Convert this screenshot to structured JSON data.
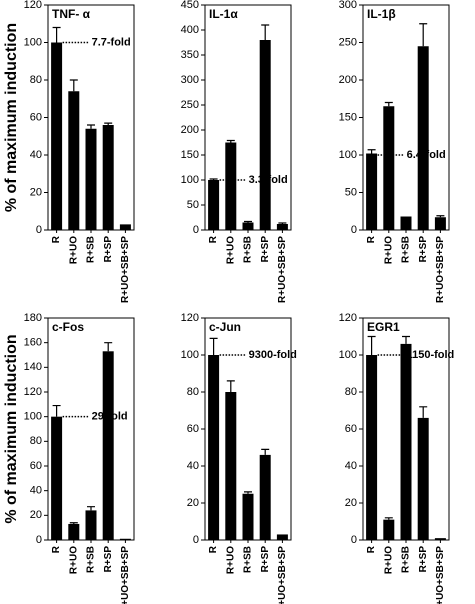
{
  "chart_data": [
    {
      "type": "bar",
      "title": "TNF- α",
      "ylabel": "% of maximum induction",
      "categories": [
        "R",
        "R+UO",
        "R+SB",
        "R+SP",
        "R+UO+SB+SP"
      ],
      "values": [
        100,
        74,
        54,
        56,
        3
      ],
      "errors": [
        8,
        6,
        2,
        1,
        0
      ],
      "color": "#000000",
      "ylim": [
        0,
        120
      ],
      "yticks": [
        0,
        20,
        40,
        60,
        80,
        100,
        120
      ],
      "reference_line": 100,
      "annotation": "7.7-fold"
    },
    {
      "type": "bar",
      "title": "IL-1α",
      "categories": [
        "R",
        "R+UO",
        "R+SB",
        "R+SP",
        "R+UO+SB+SP"
      ],
      "values": [
        100,
        175,
        15,
        380,
        12
      ],
      "errors": [
        2,
        4,
        2,
        30,
        2
      ],
      "color": "#000000",
      "ylim": [
        0,
        450
      ],
      "yticks": [
        0,
        50,
        100,
        150,
        200,
        250,
        300,
        350,
        400,
        450
      ],
      "reference_line": 100,
      "annotation": "3.3-fold"
    },
    {
      "type": "bar",
      "title": "IL-1β",
      "categories": [
        "R",
        "R+UO",
        "R+SB",
        "R+SP",
        "R+UO+SB+SP"
      ],
      "values": [
        102,
        165,
        18,
        245,
        17
      ],
      "errors": [
        5,
        5,
        0,
        30,
        2
      ],
      "color": "#000000",
      "ylim": [
        0,
        300
      ],
      "yticks": [
        0,
        50,
        100,
        150,
        200,
        250,
        300
      ],
      "reference_line": 100,
      "annotation": "6.4-fold"
    },
    {
      "type": "bar",
      "title": "c-Fos",
      "ylabel": "% of maximum induction",
      "categories": [
        "R",
        "R+UO",
        "R+SB",
        "R+SP",
        "R+UO+SB+SP"
      ],
      "values": [
        100,
        13,
        24,
        153,
        1
      ],
      "errors": [
        9,
        1,
        3,
        7,
        0
      ],
      "color": "#000000",
      "ylim": [
        0,
        180
      ],
      "yticks": [
        0,
        20,
        40,
        60,
        80,
        100,
        120,
        140,
        160,
        180
      ],
      "reference_line": 100,
      "annotation": "29-fold"
    },
    {
      "type": "bar",
      "title": "c-Jun",
      "categories": [
        "R",
        "R+UO",
        "R+SB",
        "R+SP",
        "R+UO+SB+SP"
      ],
      "values": [
        100,
        80,
        25,
        46,
        3
      ],
      "errors": [
        9,
        6,
        1,
        3,
        0
      ],
      "color": "#000000",
      "ylim": [
        0,
        120
      ],
      "yticks": [
        0,
        20,
        40,
        60,
        80,
        100,
        120
      ],
      "reference_line": 100,
      "annotation": "9300-fold"
    },
    {
      "type": "bar",
      "title": "EGR1",
      "categories": [
        "R",
        "R+UO",
        "R+SB",
        "R+SP",
        "R+UO+SB+SP"
      ],
      "values": [
        100,
        11,
        106,
        66,
        1
      ],
      "errors": [
        10,
        1,
        4,
        6,
        0
      ],
      "color": "#000000",
      "ylim": [
        0,
        120
      ],
      "yticks": [
        0,
        20,
        40,
        60,
        80,
        100,
        120
      ],
      "reference_line": 100,
      "annotation": "1150-fold"
    }
  ]
}
